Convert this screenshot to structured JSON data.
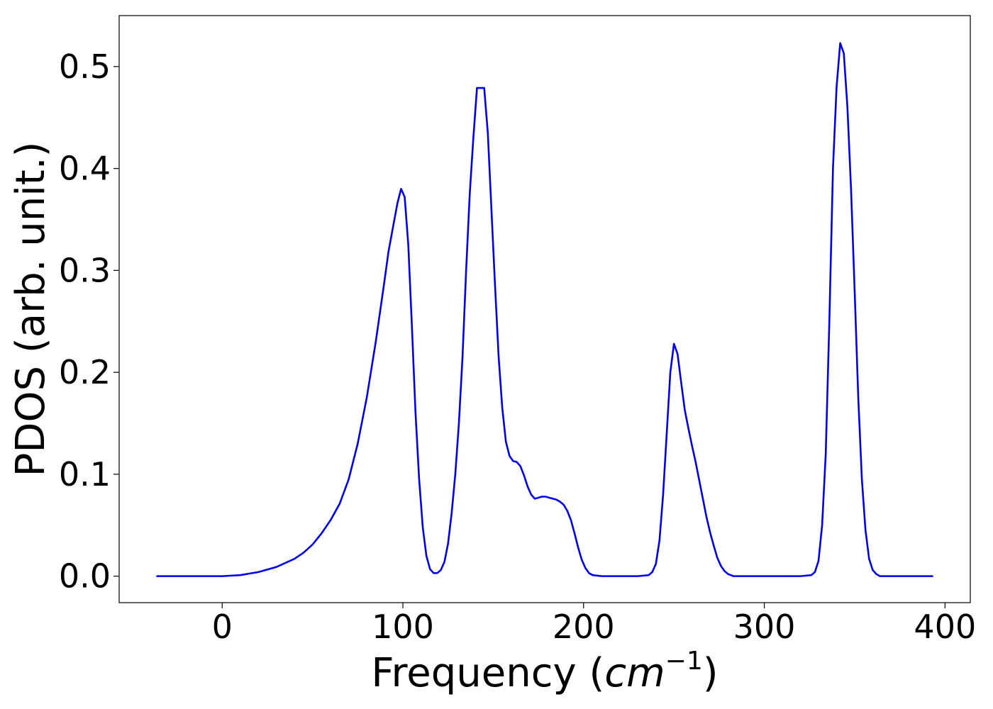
{
  "chart_data": {
    "type": "line",
    "title": "",
    "xlabel_prefix": "Frequency (",
    "xlabel_unit_base": "cm",
    "xlabel_unit_exponent": "−1",
    "xlabel_suffix": ")",
    "ylabel": "PDOS (arb. unit.)",
    "xlim": [
      -57,
      414
    ],
    "ylim": [
      -0.026,
      0.55
    ],
    "xticks": [
      0,
      100,
      200,
      300,
      400
    ],
    "xtick_labels": [
      "0",
      "100",
      "200",
      "300",
      "400"
    ],
    "yticks": [
      0.0,
      0.1,
      0.2,
      0.3,
      0.4,
      0.5
    ],
    "ytick_labels": [
      "0.0",
      "0.1",
      "0.2",
      "0.3",
      "0.4",
      "0.5"
    ],
    "grid": false,
    "legend": "none",
    "line_color": "#0000ee",
    "series": [
      {
        "x": [
          -36,
          -20,
          0,
          10,
          20,
          30,
          40,
          45,
          50,
          55,
          60,
          65,
          70,
          75,
          80,
          85,
          90,
          92,
          95,
          97,
          99,
          101,
          103,
          105,
          107,
          109,
          111,
          113,
          115,
          117,
          119,
          121,
          123,
          125,
          127,
          129,
          131,
          133,
          135,
          137,
          139,
          141,
          143,
          145,
          147,
          149,
          151,
          153,
          155,
          157,
          159,
          161,
          163,
          165,
          167,
          169,
          171,
          173,
          175,
          177,
          179,
          181,
          183,
          185,
          187,
          189,
          191,
          193,
          195,
          197,
          199,
          201,
          203,
          205,
          210,
          220,
          230,
          236,
          238,
          240,
          242,
          244,
          246,
          248,
          250,
          252,
          254,
          256,
          258,
          260,
          262,
          264,
          266,
          268,
          270,
          272,
          274,
          276,
          278,
          280,
          283,
          290,
          300,
          310,
          320,
          326,
          328,
          330,
          332,
          334,
          336,
          338,
          340,
          342,
          344,
          346,
          348,
          350,
          352,
          354,
          356,
          358,
          360,
          362,
          364,
          366,
          370,
          380,
          393
        ],
        "y": [
          0.0,
          0.0,
          0.0,
          0.001,
          0.004,
          0.009,
          0.017,
          0.023,
          0.031,
          0.042,
          0.055,
          0.071,
          0.095,
          0.13,
          0.175,
          0.23,
          0.292,
          0.318,
          0.347,
          0.366,
          0.38,
          0.372,
          0.325,
          0.245,
          0.16,
          0.095,
          0.048,
          0.02,
          0.007,
          0.003,
          0.003,
          0.006,
          0.014,
          0.032,
          0.062,
          0.1,
          0.15,
          0.215,
          0.3,
          0.375,
          0.43,
          0.479,
          0.479,
          0.479,
          0.435,
          0.36,
          0.285,
          0.215,
          0.165,
          0.132,
          0.118,
          0.113,
          0.112,
          0.108,
          0.099,
          0.088,
          0.08,
          0.076,
          0.077,
          0.078,
          0.078,
          0.077,
          0.076,
          0.075,
          0.073,
          0.07,
          0.064,
          0.055,
          0.042,
          0.028,
          0.016,
          0.008,
          0.003,
          0.001,
          0.0,
          0.0,
          0.0,
          0.001,
          0.004,
          0.012,
          0.035,
          0.08,
          0.14,
          0.2,
          0.228,
          0.218,
          0.19,
          0.163,
          0.145,
          0.128,
          0.112,
          0.094,
          0.076,
          0.058,
          0.043,
          0.03,
          0.018,
          0.01,
          0.005,
          0.002,
          0.0,
          0.0,
          0.0,
          0.0,
          0.0,
          0.001,
          0.004,
          0.015,
          0.05,
          0.12,
          0.25,
          0.4,
          0.48,
          0.523,
          0.513,
          0.46,
          0.38,
          0.28,
          0.175,
          0.095,
          0.045,
          0.017,
          0.006,
          0.002,
          0.0,
          0.0,
          0.0,
          0.0,
          0.0
        ]
      }
    ]
  }
}
